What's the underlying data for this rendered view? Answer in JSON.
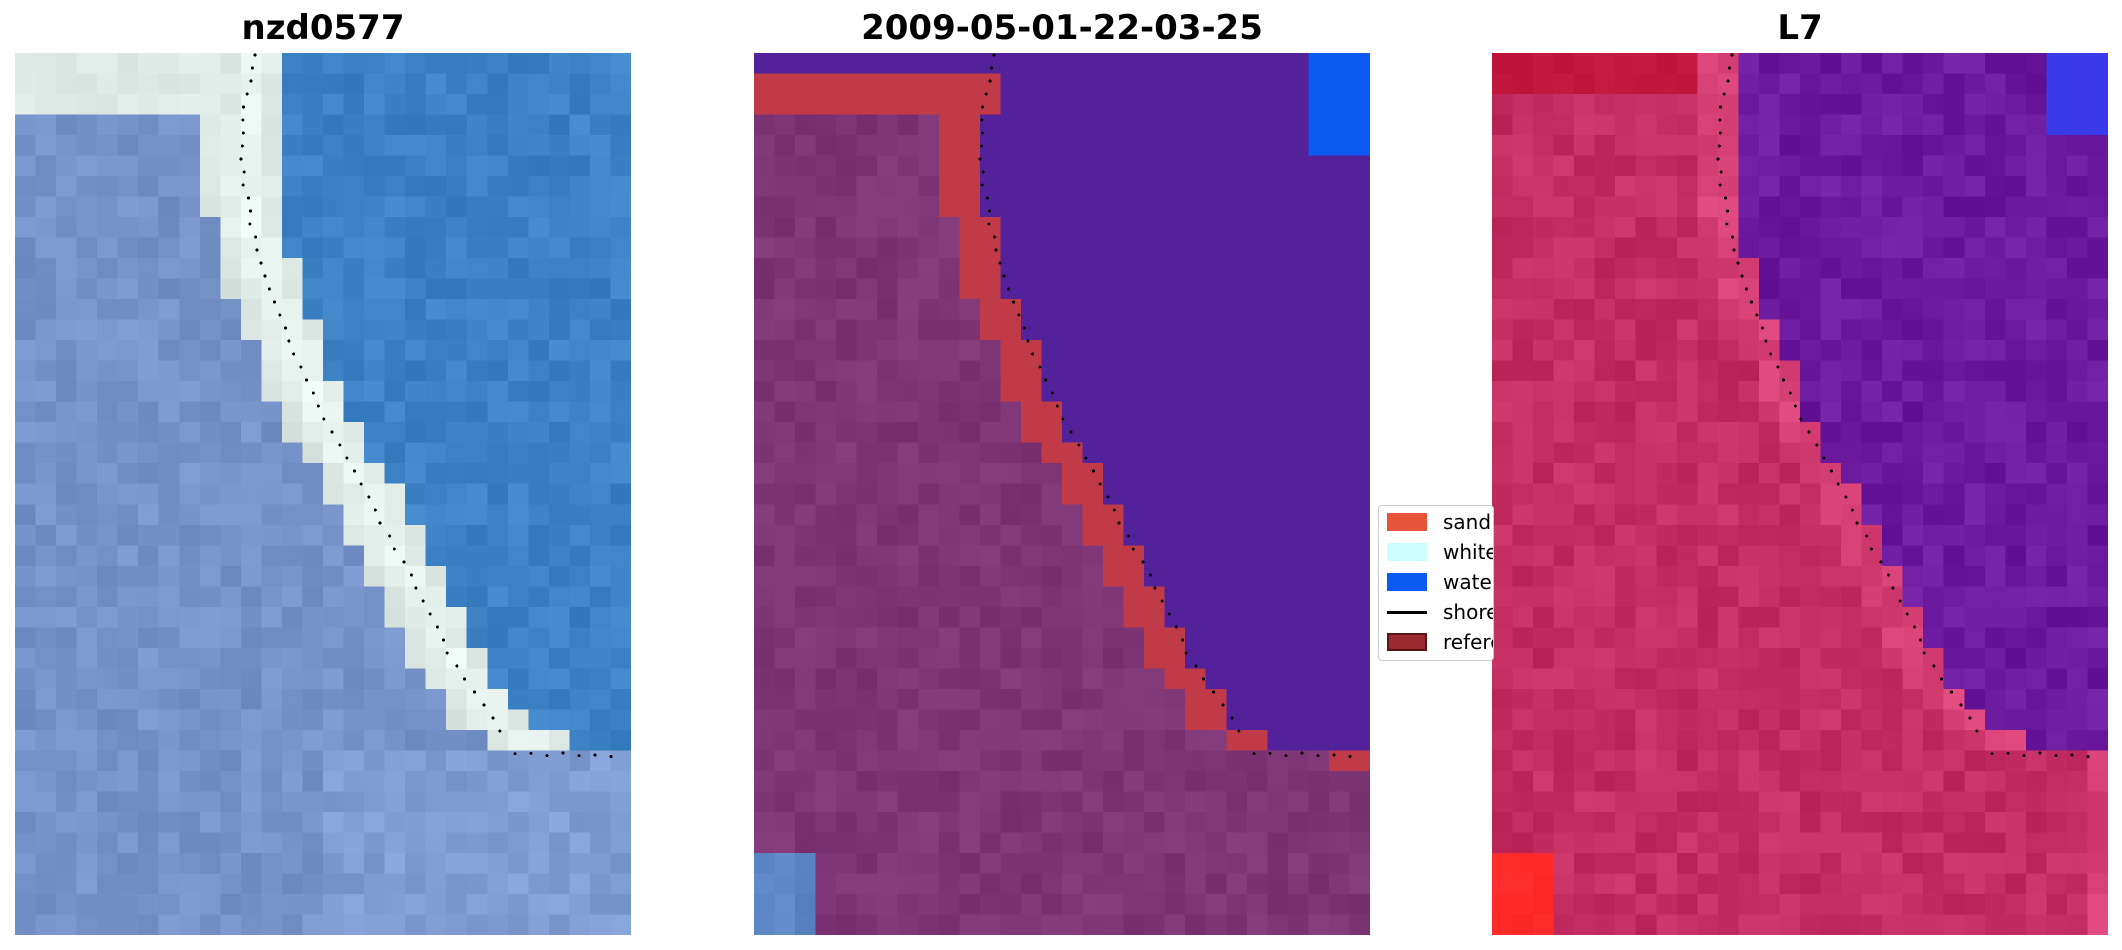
{
  "panels": [
    {
      "title": "nzd0577",
      "image": "rgb-satellite-image"
    },
    {
      "title": "2009-05-01-22-03-25",
      "image": "classified-image"
    },
    {
      "title": "L7",
      "image": "mndwi-image"
    }
  ],
  "legend": {
    "items": [
      {
        "label": "sand",
        "color": "#e6543a",
        "kind": "patch"
      },
      {
        "label": "white-water",
        "color": "#ccfffd",
        "kind": "patch"
      },
      {
        "label": "water",
        "color": "#0b5bf3",
        "kind": "patch"
      },
      {
        "label": "shoreline",
        "color": "#000000",
        "kind": "line"
      },
      {
        "label": "reference shoreline",
        "color": "#9a2a30",
        "kind": "patch"
      }
    ]
  },
  "colors": {
    "sand_class": "#c03a48",
    "water_class": "#53229a",
    "land_class": "#7e3576",
    "rgb_water": "#3c82c4",
    "rgb_land": "#7593c8",
    "surf_white": "#eef8f5",
    "mndwi_land": "#c32d62",
    "mndwi_water": "#6c1a9e",
    "shoreline_points": "#000000"
  }
}
